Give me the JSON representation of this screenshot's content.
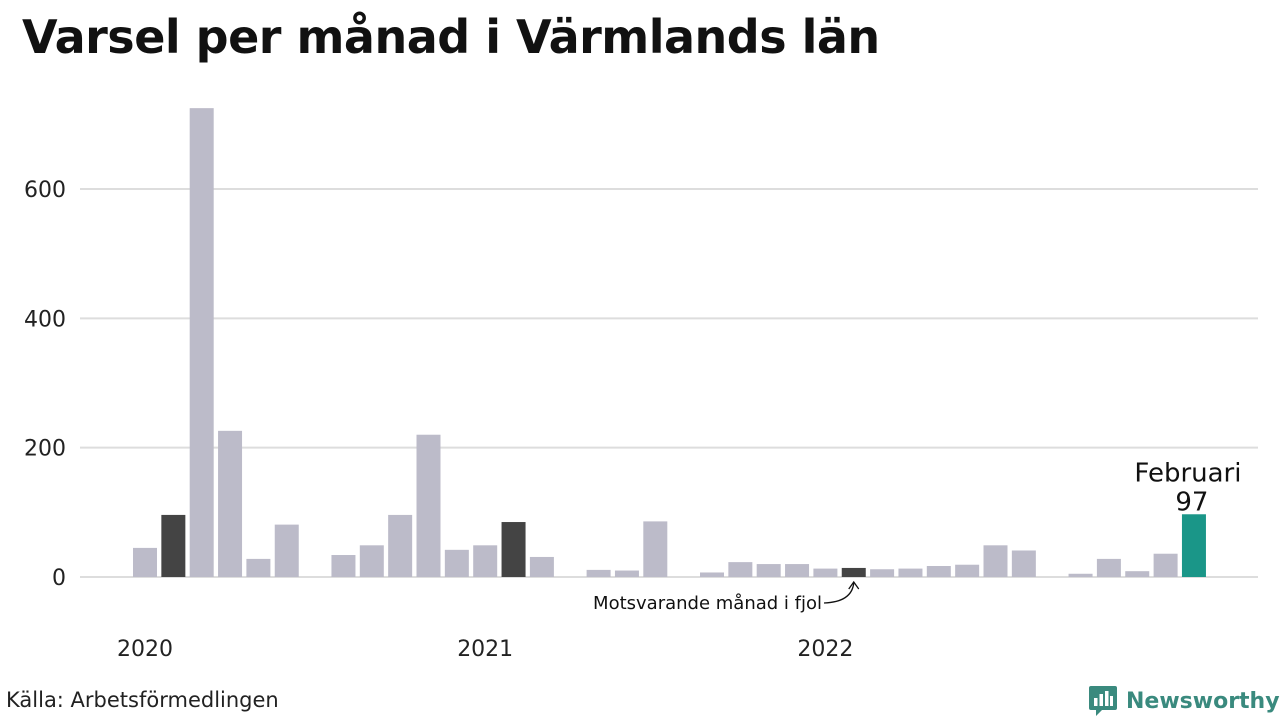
{
  "title": "Varsel per månad i Värmlands län",
  "source": "Källa: Arbetsförmedlingen",
  "brand": "Newsworthy",
  "colors": {
    "bar_default": "#bcbbc9",
    "bar_same_month": "#444444",
    "bar_latest": "#1a9688",
    "grid": "#dddddd",
    "brand": "#3a8a7e"
  },
  "annotations": {
    "same_month_label": "Motsvarande månad i fjol",
    "latest_month_label": "Februari",
    "latest_value_label": "97"
  },
  "chart_data": {
    "type": "bar",
    "title": "Varsel per månad i Värmlands län",
    "xlabel": "",
    "ylabel": "",
    "ylim": [
      0,
      730
    ],
    "yticks": [
      0,
      200,
      400,
      600
    ],
    "grid": true,
    "x_year_labels": [
      {
        "label": "2020",
        "month_index": 0
      },
      {
        "label": "2021",
        "month_index": 12
      },
      {
        "label": "2022",
        "month_index": 24
      }
    ],
    "categories": [
      "2020-01",
      "2020-02",
      "2020-03",
      "2020-04",
      "2020-05",
      "2020-06",
      "2020-07",
      "2020-08",
      "2020-09",
      "2020-10",
      "2020-11",
      "2020-12",
      "2021-01",
      "2021-02",
      "2021-03",
      "2021-04",
      "2021-05",
      "2021-06",
      "2021-07",
      "2021-08",
      "2021-09",
      "2021-10",
      "2021-11",
      "2021-12",
      "2022-01",
      "2022-02",
      "2022-03",
      "2022-04",
      "2022-05",
      "2022-06",
      "2022-07",
      "2022-08",
      "2022-09",
      "2022-10",
      "2022-11",
      "2022-12",
      "2023-01",
      "2023-02"
    ],
    "values": [
      45,
      96,
      725,
      226,
      28,
      81,
      0,
      34,
      49,
      96,
      220,
      42,
      49,
      85,
      31,
      0,
      11,
      10,
      86,
      0,
      7,
      23,
      20,
      20,
      13,
      14,
      12,
      13,
      17,
      19,
      49,
      41,
      0,
      5,
      28,
      9,
      36,
      97
    ],
    "highlight": {
      "same_month_indices": [
        1,
        13,
        25
      ],
      "latest_index": 37
    }
  }
}
